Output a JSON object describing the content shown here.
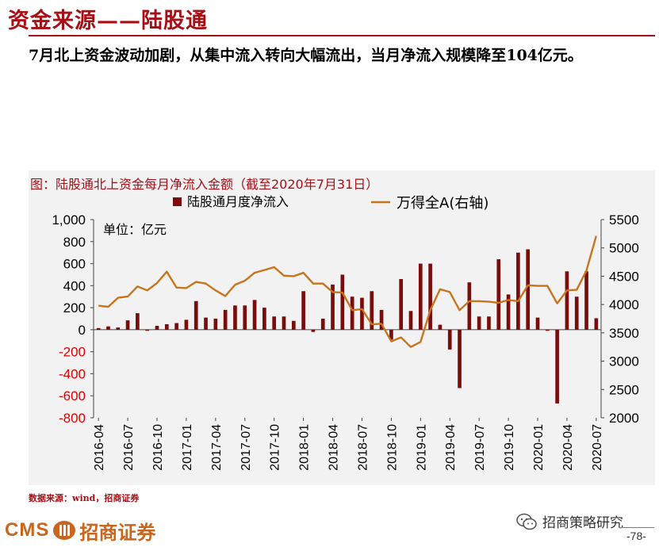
{
  "header": {
    "title": "资金来源——陆股通",
    "subtitle": "7月北上资金波动加剧，从集中流入转向大幅流出，当月净流入规模降至104亿元。"
  },
  "chart_caption": "图：陆股通北上资金每月净流入金额（截至2020年7月31日）",
  "source_text": "数据来源：wind，招商证券",
  "footer": {
    "logo_text": "CMS",
    "logo_cn": "招商证券",
    "wechat_label": "招商策略研究",
    "page_number": "-78-"
  },
  "colors": {
    "bar": "#7b0c0c",
    "line": "#c8741c",
    "title": "#a50f15"
  },
  "chart_data": {
    "type": "bar",
    "unit_label": "单位：亿元",
    "legend": [
      "陆股通月度净流入",
      "万得全A(右轴)"
    ],
    "x_tick_labels": [
      "2016-04",
      "2016-07",
      "2016-10",
      "2017-01",
      "2017-04",
      "2017-07",
      "2017-10",
      "2018-01",
      "2018-04",
      "2018-07",
      "2018-10",
      "2019-01",
      "2019-04",
      "2019-07",
      "2019-10",
      "2020-01",
      "2020-04",
      "2020-07"
    ],
    "categories": [
      "2016-04",
      "2016-05",
      "2016-06",
      "2016-07",
      "2016-08",
      "2016-09",
      "2016-10",
      "2016-11",
      "2016-12",
      "2017-01",
      "2017-02",
      "2017-03",
      "2017-04",
      "2017-05",
      "2017-06",
      "2017-07",
      "2017-08",
      "2017-09",
      "2017-10",
      "2017-11",
      "2017-12",
      "2018-01",
      "2018-02",
      "2018-03",
      "2018-04",
      "2018-05",
      "2018-06",
      "2018-07",
      "2018-08",
      "2018-09",
      "2018-10",
      "2018-11",
      "2018-12",
      "2019-01",
      "2019-02",
      "2019-03",
      "2019-04",
      "2019-05",
      "2019-06",
      "2019-07",
      "2019-08",
      "2019-09",
      "2019-10",
      "2019-11",
      "2019-12",
      "2020-01",
      "2020-02",
      "2020-03",
      "2020-04",
      "2020-05",
      "2020-06",
      "2020-07"
    ],
    "series": [
      {
        "name": "陆股通月度净流入",
        "axis": "left",
        "values": [
          15,
          30,
          20,
          85,
          150,
          -10,
          35,
          50,
          60,
          90,
          260,
          110,
          100,
          180,
          220,
          220,
          270,
          200,
          120,
          120,
          80,
          350,
          -20,
          100,
          410,
          500,
          300,
          290,
          350,
          180,
          -90,
          460,
          170,
          600,
          600,
          45,
          -180,
          -530,
          430,
          120,
          120,
          640,
          320,
          700,
          730,
          110,
          -10,
          -670,
          530,
          300,
          530,
          104
        ]
      },
      {
        "name": "万得全A(右轴)",
        "axis": "right",
        "values": [
          3980,
          3960,
          4120,
          4140,
          4320,
          4250,
          4380,
          4580,
          4300,
          4290,
          4400,
          4370,
          4250,
          4150,
          4350,
          4420,
          4560,
          4610,
          4660,
          4510,
          4500,
          4560,
          4370,
          4370,
          4220,
          4210,
          3900,
          3920,
          3650,
          3660,
          3350,
          3420,
          3250,
          3340,
          3900,
          4270,
          4220,
          3900,
          4060,
          4060,
          4050,
          4030,
          4080,
          4060,
          4340,
          4330,
          4330,
          4020,
          4250,
          4260,
          4600,
          5210
        ]
      }
    ],
    "ylim_left": [
      -800,
      1000
    ],
    "yticks_left": [
      "1,000",
      "800",
      "600",
      "400",
      "200",
      "0",
      "-200",
      "-400",
      "-600",
      "-800"
    ],
    "ylim_right": [
      2000,
      5500
    ],
    "yticks_right": [
      "5500",
      "5000",
      "4500",
      "4000",
      "3500",
      "3000",
      "2500",
      "2000"
    ]
  }
}
